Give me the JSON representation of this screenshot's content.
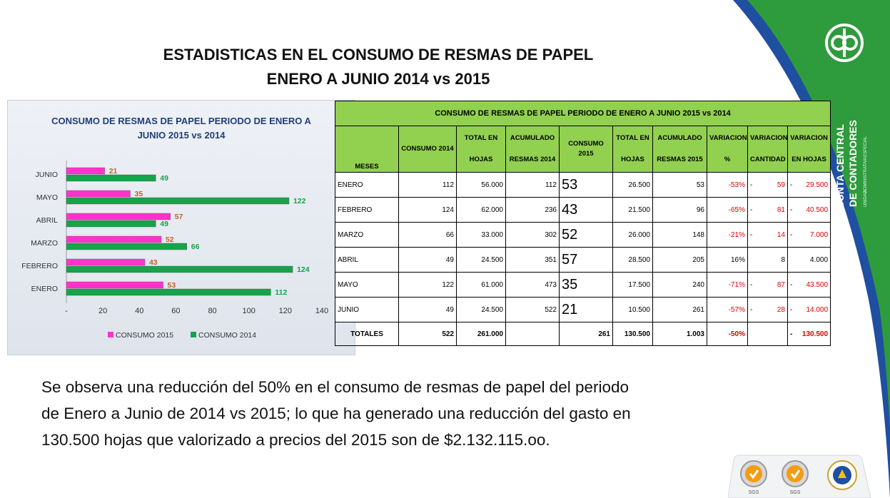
{
  "slide": {
    "title_line1": "ESTADISTICAS EN EL CONSUMO DE RESMAS DE PAPEL",
    "title_line2": "ENERO A JUNIO  2014 vs 2015"
  },
  "brand": {
    "name_line1": "JUNTA CENTRAL",
    "name_line2": "DE CONTADORES",
    "sub_line1": "UNIDAD",
    "sub_line2": "ADMINISTRATIVA",
    "sub_line3": "ESPECIAL",
    "green": "#2e9b3c",
    "blue": "#1f4fa0"
  },
  "chart_data": {
    "type": "bar",
    "orientation": "horizontal",
    "title": "CONSUMO DE RESMAS DE PAPEL PERIODO DE ENERO A JUNIO 2015 vs 2014",
    "title_line1": "CONSUMO DE RESMAS DE PAPEL PERIODO DE ENERO A",
    "title_line2": "JUNIO 2015 vs 2014",
    "categories": [
      "ENERO",
      "FEBRERO",
      "MARZO",
      "ABRIL",
      "MAYO",
      "JUNIO"
    ],
    "series": [
      {
        "name": "CONSUMO  2015",
        "values": [
          53,
          43,
          52,
          57,
          35,
          21
        ],
        "color": "#ff33cc",
        "label_color": "#c0622b"
      },
      {
        "name": "CONSUMO  2014",
        "values": [
          112,
          124,
          66,
          49,
          122,
          49
        ],
        "color": "#16a34a",
        "label_color": "#16a34a"
      }
    ],
    "xlim": [
      0,
      140
    ],
    "x_ticks": [
      "-",
      "20",
      "40",
      "60",
      "80",
      "100",
      "120",
      "140"
    ],
    "legend_position": "bottom",
    "grid": false
  },
  "table": {
    "title": "CONSUMO DE RESMAS DE PAPEL PERIODO DE ENERO A JUNIO 2015 vs 2014",
    "headers": [
      [
        "MESES"
      ],
      [
        "CONSUMO 2014"
      ],
      [
        "TOTAL EN",
        "HOJAS"
      ],
      [
        "ACUMULADO",
        "RESMAS 2014"
      ],
      [
        "CONSUMO 2015"
      ],
      [
        "TOTAL EN",
        "HOJAS"
      ],
      [
        "ACUMULADO",
        "RESMAS 2015"
      ],
      [
        "VARIACION",
        "%"
      ],
      [
        "VARIACION",
        "CANTIDAD"
      ],
      [
        "VARIACION",
        "EN HOJAS"
      ]
    ],
    "rows": [
      {
        "mes": "ENERO",
        "c2014": "112",
        "hojas2014": "56.000",
        "acum2014": "112",
        "c2015": "53",
        "hojas2015": "26.500",
        "acum2015": "53",
        "var_pct": "-53%",
        "var_cant": "59",
        "var_hojas": "29.500",
        "neg": true
      },
      {
        "mes": "FEBRERO",
        "c2014": "124",
        "hojas2014": "62.000",
        "acum2014": "236",
        "c2015": "43",
        "hojas2015": "21.500",
        "acum2015": "96",
        "var_pct": "-65%",
        "var_cant": "81",
        "var_hojas": "40.500",
        "neg": true
      },
      {
        "mes": "MARZO",
        "c2014": "66",
        "hojas2014": "33.000",
        "acum2014": "302",
        "c2015": "52",
        "hojas2015": "26.000",
        "acum2015": "148",
        "var_pct": "-21%",
        "var_cant": "14",
        "var_hojas": "7.000",
        "neg": true
      },
      {
        "mes": "ABRIL",
        "c2014": "49",
        "hojas2014": "24.500",
        "acum2014": "351",
        "c2015": "57",
        "hojas2015": "28.500",
        "acum2015": "205",
        "var_pct": "16%",
        "var_cant": "8",
        "var_hojas": "4.000",
        "neg": false
      },
      {
        "mes": "MAYO",
        "c2014": "122",
        "hojas2014": "61.000",
        "acum2014": "473",
        "c2015": "35",
        "hojas2015": "17.500",
        "acum2015": "240",
        "var_pct": "-71%",
        "var_cant": "87",
        "var_hojas": "43.500",
        "neg": true
      },
      {
        "mes": "JUNIO",
        "c2014": "49",
        "hojas2014": "24.500",
        "acum2014": "522",
        "c2015": "21",
        "hojas2015": "10.500",
        "acum2015": "261",
        "var_pct": "-57%",
        "var_cant": "28",
        "var_hojas": "14.000",
        "neg": true
      }
    ],
    "totals": {
      "label": "TOTALES",
      "c2014": "522",
      "hojas2014": "261.000",
      "acum2014": "",
      "c2015": "261",
      "hojas2015": "130.500",
      "acum2015": "1.003",
      "var_pct": "-50%",
      "var_cant": "",
      "var_hojas": "130.500"
    },
    "dash": "-",
    "header_color": "#92d050",
    "negative_color": "#e00000"
  },
  "summary": {
    "line1": "Se observa una reducción del 50% en el consumo de resmas de papel del periodo",
    "line2": "de Enero a Junio de 2014 vs 2015; lo que ha generado una reducción del gasto en",
    "line3": "130.500 hojas que valorizado a precios del 2015 son de $2.132.115.oo."
  },
  "footer_logos": {
    "cert_label_1": "SGS",
    "cert_label_2": "SGS",
    "icons": [
      "certification-seal-icon",
      "certification-seal-icon",
      "institutional-seal-icon"
    ]
  }
}
